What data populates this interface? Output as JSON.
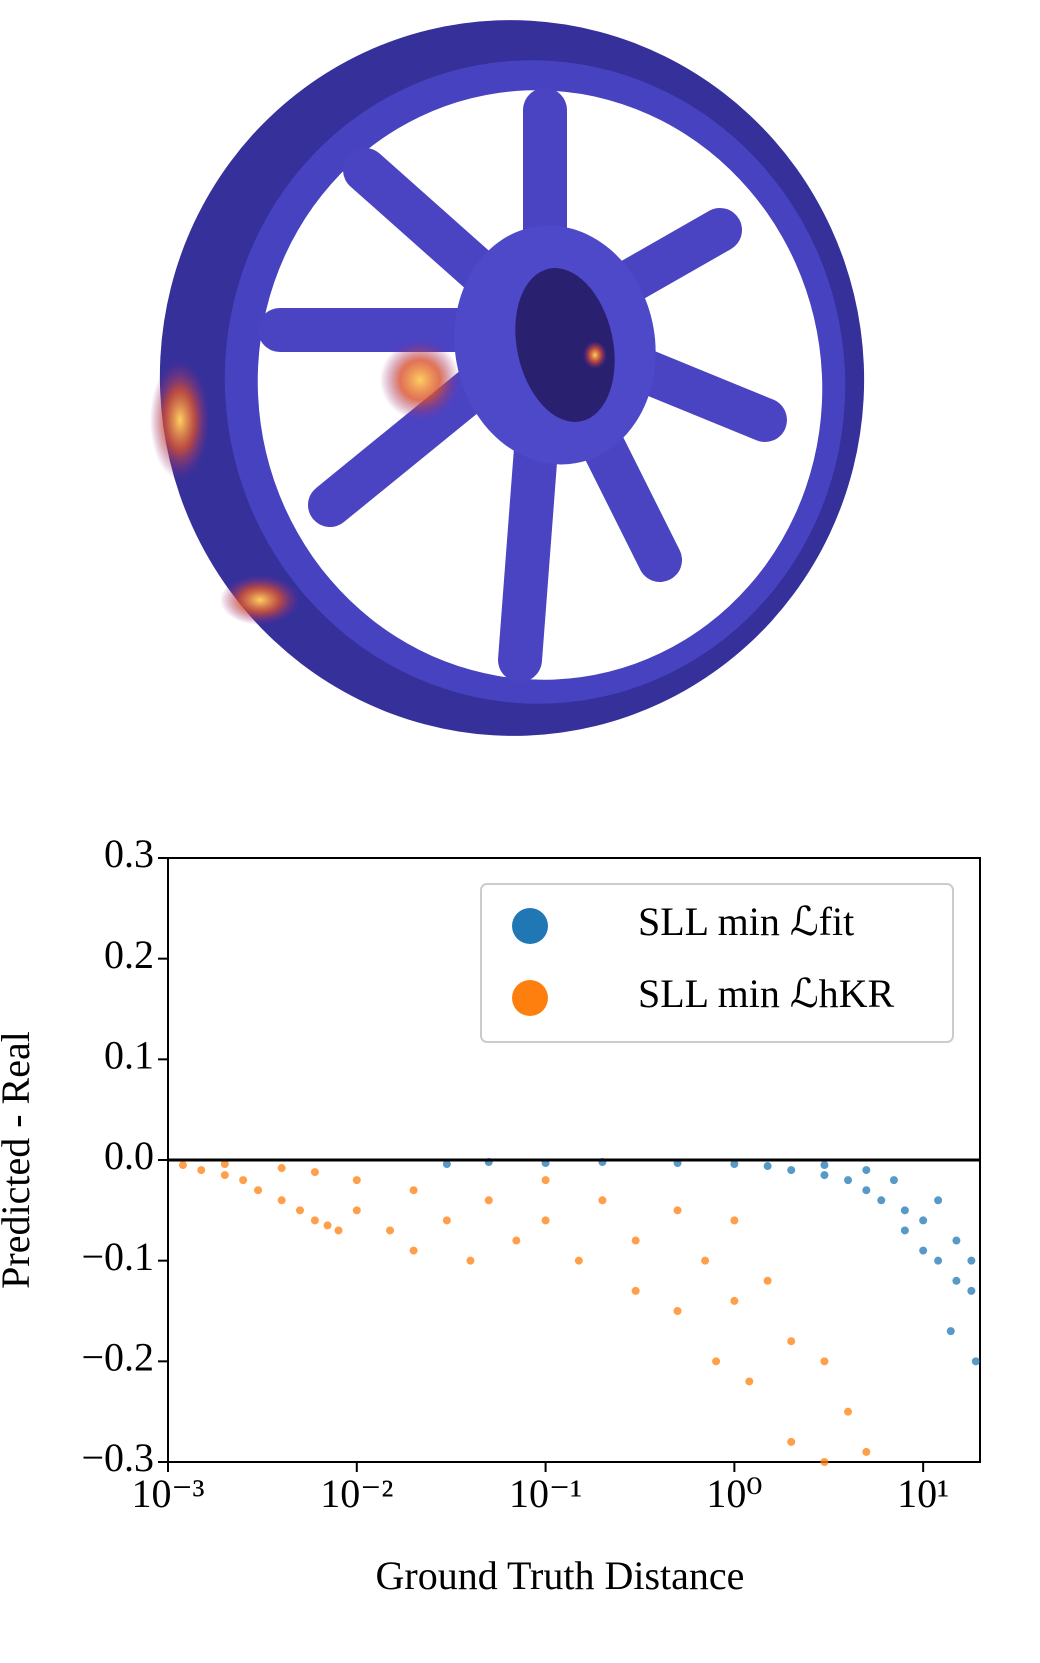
{
  "chart_data": {
    "type": "scatter",
    "xlabel": "Ground Truth Distance",
    "ylabel": "Predicted - Real",
    "xscale": "log",
    "xlim": [
      0.001,
      20
    ],
    "xticks": [
      {
        "value": 0.001,
        "label": "10⁻³"
      },
      {
        "value": 0.01,
        "label": "10⁻²"
      },
      {
        "value": 0.1,
        "label": "10⁻¹"
      },
      {
        "value": 1,
        "label": "10⁰"
      },
      {
        "value": 10,
        "label": "10¹"
      }
    ],
    "ylim": [
      -0.3,
      0.3
    ],
    "yticks": [
      {
        "value": -0.3,
        "label": "−0.3"
      },
      {
        "value": -0.2,
        "label": "−0.2"
      },
      {
        "value": -0.1,
        "label": "−0.1"
      },
      {
        "value": 0,
        "label": "0.0"
      },
      0.1,
      0.2,
      0.3
    ],
    "hline": 0,
    "legend": "upper right",
    "series": [
      {
        "name": "SLL min ℒfit",
        "color": "#1f77b4",
        "x": [
          0.03,
          0.05,
          0.1,
          0.2,
          0.5,
          1,
          1.5,
          2,
          3,
          3,
          4,
          5,
          5,
          6,
          7,
          8,
          8,
          10,
          10,
          12,
          12,
          14,
          15,
          15,
          18,
          18,
          19
        ],
        "values": [
          -0.004,
          -0.002,
          -0.003,
          -0.002,
          -0.003,
          -0.004,
          -0.006,
          -0.01,
          -0.015,
          -0.005,
          -0.02,
          -0.03,
          -0.01,
          -0.04,
          -0.02,
          -0.05,
          -0.07,
          -0.06,
          -0.09,
          -0.04,
          -0.1,
          -0.17,
          -0.08,
          -0.12,
          -0.1,
          -0.13,
          -0.2
        ]
      },
      {
        "name": "SLL min ℒhKR",
        "color": "#ff7f0e",
        "x": [
          0.0012,
          0.0015,
          0.002,
          0.0025,
          0.003,
          0.004,
          0.005,
          0.006,
          0.007,
          0.008,
          0.002,
          0.004,
          0.006,
          0.01,
          0.01,
          0.015,
          0.02,
          0.02,
          0.03,
          0.04,
          0.05,
          0.07,
          0.1,
          0.1,
          0.15,
          0.2,
          0.3,
          0.3,
          0.5,
          0.5,
          0.7,
          0.8,
          1,
          1,
          1.2,
          1.5,
          2,
          2,
          3,
          3,
          4,
          5
        ],
        "values": [
          -0.005,
          -0.01,
          -0.015,
          -0.02,
          -0.03,
          -0.04,
          -0.05,
          -0.06,
          -0.065,
          -0.07,
          -0.004,
          -0.008,
          -0.012,
          -0.02,
          -0.05,
          -0.07,
          -0.09,
          -0.03,
          -0.06,
          -0.1,
          -0.04,
          -0.08,
          -0.02,
          -0.06,
          -0.1,
          -0.04,
          -0.08,
          -0.13,
          -0.05,
          -0.15,
          -0.1,
          -0.2,
          -0.06,
          -0.14,
          -0.22,
          -0.12,
          -0.18,
          -0.28,
          -0.2,
          -0.3,
          -0.25,
          -0.29
        ]
      }
    ]
  }
}
